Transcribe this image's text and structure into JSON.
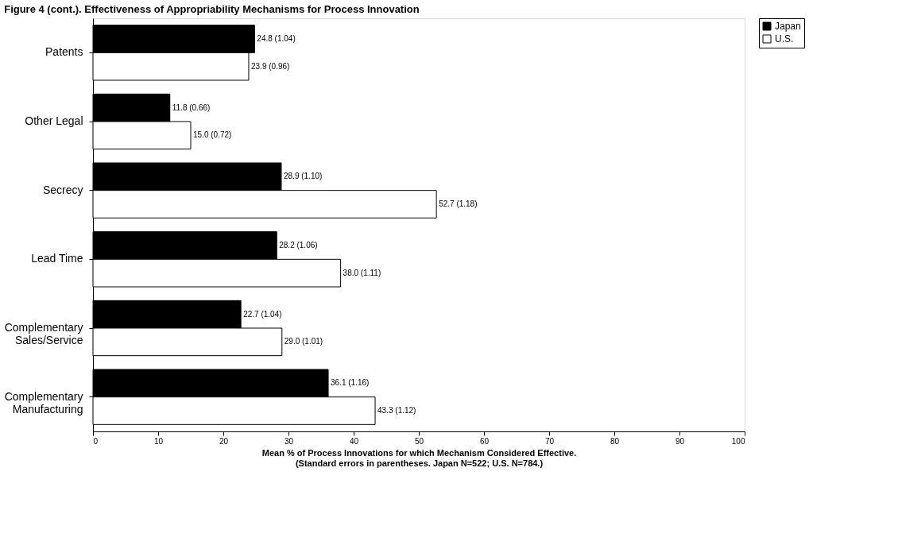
{
  "chart_data": {
    "type": "bar",
    "orientation": "horizontal",
    "title": "Figure 4 (cont.). Effectiveness of Appropriability Mechanisms for Process Innovation",
    "xlabel": "Mean % of Process Innovations for which Mechanism Considered Effective.\n(Standard errors in parentheses. Japan N=522; U.S. N=784.)",
    "categories": [
      "Patents",
      "Other Legal",
      "Secrecy",
      "Lead Time",
      "Complementary\nSales/Service",
      "Complementary\nManufacturing"
    ],
    "series": [
      {
        "name": "Japan",
        "color": "#000000",
        "values": [
          24.8,
          11.8,
          28.9,
          28.2,
          22.7,
          36.1
        ],
        "value_labels": [
          "24.8 (1.04)",
          "11.8 (0.66)",
          "28.9 (1.10)",
          "28.2 (1.06)",
          "22.7 (1.04)",
          "36.1 (1.16)"
        ]
      },
      {
        "name": "U.S.",
        "color": "#ffffff",
        "values": [
          23.9,
          15.0,
          52.7,
          38.0,
          29.0,
          43.3
        ],
        "value_labels": [
          "23.9 (0.96)",
          "15.0 (0.72)",
          "52.7 (1.18)",
          "38.0 (1.11)",
          "29.0 (1.01)",
          "43.3 (1.12)"
        ]
      }
    ],
    "xlim": [
      0,
      100
    ],
    "xticks": [
      0,
      10,
      20,
      30,
      40,
      50,
      60,
      70,
      80,
      90,
      100
    ],
    "grid": false,
    "legend": "right"
  }
}
